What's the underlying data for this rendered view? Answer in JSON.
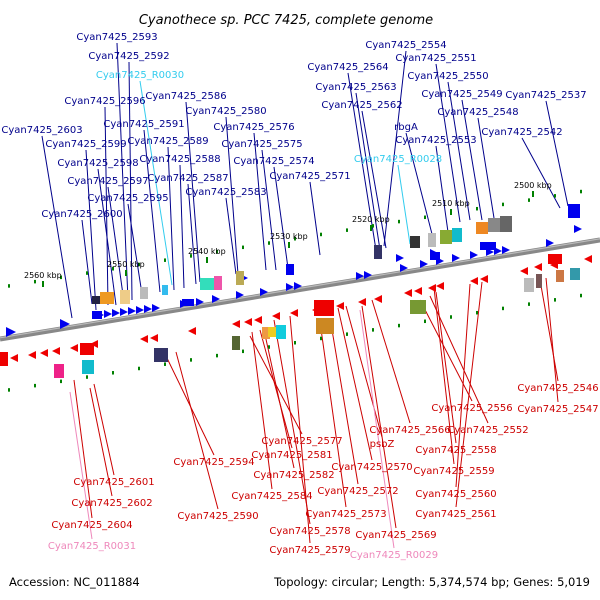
{
  "title": "Cyanothece sp. PCC 7425, complete genome",
  "footer": {
    "accession": "Accession: NC_011884",
    "summary": "Topology: circular; Length: 5,374,574 bp; Genes: 5,019"
  },
  "colors": {
    "forward_label": "#00008B",
    "reverse_label": "#CC0000",
    "rna_forward": "#33CCEE",
    "rna_reverse": "#EE88BB",
    "forward_feature": "#0000EE",
    "reverse_feature": "#EE0000",
    "backbone": "#888888",
    "tick": "#008000"
  },
  "ticks": [
    "2500 kbp",
    "2510 kbp",
    "2520 kbp",
    "2530 kbp",
    "2540 kbp",
    "2550 kbp",
    "2560 kbp"
  ],
  "top_labels": [
    {
      "text": "Cyan7425_2593",
      "kind": "gene"
    },
    {
      "text": "Cyan7425_2592",
      "kind": "gene"
    },
    {
      "text": "Cyan7425_R0030",
      "kind": "rna"
    },
    {
      "text": "Cyan7425_2596",
      "kind": "gene"
    },
    {
      "text": "Cyan7425_2586",
      "kind": "gene"
    },
    {
      "text": "Cyan7425_2580",
      "kind": "gene"
    },
    {
      "text": "Cyan7425_2591",
      "kind": "gene"
    },
    {
      "text": "Cyan7425_2603",
      "kind": "gene"
    },
    {
      "text": "Cyan7425_2576",
      "kind": "gene"
    },
    {
      "text": "Cyan7425_2599",
      "kind": "gene"
    },
    {
      "text": "Cyan7425_2589",
      "kind": "gene"
    },
    {
      "text": "Cyan7425_2575",
      "kind": "gene"
    },
    {
      "text": "Cyan7425_2588",
      "kind": "gene"
    },
    {
      "text": "Cyan7425_2598",
      "kind": "gene"
    },
    {
      "text": "Cyan7425_2574",
      "kind": "gene"
    },
    {
      "text": "Cyan7425_2587",
      "kind": "gene"
    },
    {
      "text": "Cyan7425_2597",
      "kind": "gene"
    },
    {
      "text": "Cyan7425_2571",
      "kind": "gene"
    },
    {
      "text": "Cyan7425_2583",
      "kind": "gene"
    },
    {
      "text": "Cyan7425_2595",
      "kind": "gene"
    },
    {
      "text": "Cyan7425_2600",
      "kind": "gene"
    },
    {
      "text": "Cyan7425_2554",
      "kind": "gene"
    },
    {
      "text": "Cyan7425_2564",
      "kind": "gene"
    },
    {
      "text": "Cyan7425_2551",
      "kind": "gene"
    },
    {
      "text": "Cyan7425_2563",
      "kind": "gene"
    },
    {
      "text": "Cyan7425_2550",
      "kind": "gene"
    },
    {
      "text": "Cyan7425_2562",
      "kind": "gene"
    },
    {
      "text": "Cyan7425_2549",
      "kind": "gene"
    },
    {
      "text": "Cyan7425_2537",
      "kind": "gene"
    },
    {
      "text": "Cyan7425_2548",
      "kind": "gene"
    },
    {
      "text": "rbgA",
      "kind": "gene"
    },
    {
      "text": "Cyan7425_2542",
      "kind": "gene"
    },
    {
      "text": "Cyan7425_2553",
      "kind": "gene"
    },
    {
      "text": "Cyan7425_R0028",
      "kind": "rna"
    }
  ],
  "bottom_labels": [
    {
      "text": "Cyan7425_2546",
      "kind": "gene"
    },
    {
      "text": "Cyan7425_2547",
      "kind": "gene"
    },
    {
      "text": "Cyan7425_2556",
      "kind": "gene"
    },
    {
      "text": "Cyan7425_2552",
      "kind": "gene"
    },
    {
      "text": "Cyan7425_2566",
      "kind": "gene"
    },
    {
      "text": "Cyan7425_2577",
      "kind": "gene"
    },
    {
      "text": "psbZ",
      "kind": "gene"
    },
    {
      "text": "Cyan7425_2558",
      "kind": "gene"
    },
    {
      "text": "Cyan7425_2581",
      "kind": "gene"
    },
    {
      "text": "Cyan7425_2594",
      "kind": "gene"
    },
    {
      "text": "Cyan7425_2570",
      "kind": "gene"
    },
    {
      "text": "Cyan7425_2559",
      "kind": "gene"
    },
    {
      "text": "Cyan7425_2582",
      "kind": "gene"
    },
    {
      "text": "Cyan7425_2601",
      "kind": "gene"
    },
    {
      "text": "Cyan7425_2572",
      "kind": "gene"
    },
    {
      "text": "Cyan7425_2560",
      "kind": "gene"
    },
    {
      "text": "Cyan7425_2584",
      "kind": "gene"
    },
    {
      "text": "Cyan7425_2602",
      "kind": "gene"
    },
    {
      "text": "Cyan7425_2573",
      "kind": "gene"
    },
    {
      "text": "Cyan7425_2561",
      "kind": "gene"
    },
    {
      "text": "Cyan7425_2590",
      "kind": "gene"
    },
    {
      "text": "Cyan7425_2578",
      "kind": "gene"
    },
    {
      "text": "Cyan7425_2604",
      "kind": "gene"
    },
    {
      "text": "Cyan7425_2569",
      "kind": "gene"
    },
    {
      "text": "Cyan7425_R0031",
      "kind": "rna"
    },
    {
      "text": "Cyan7425_2579",
      "kind": "gene"
    },
    {
      "text": "Cyan7425_R0029",
      "kind": "rna"
    }
  ]
}
